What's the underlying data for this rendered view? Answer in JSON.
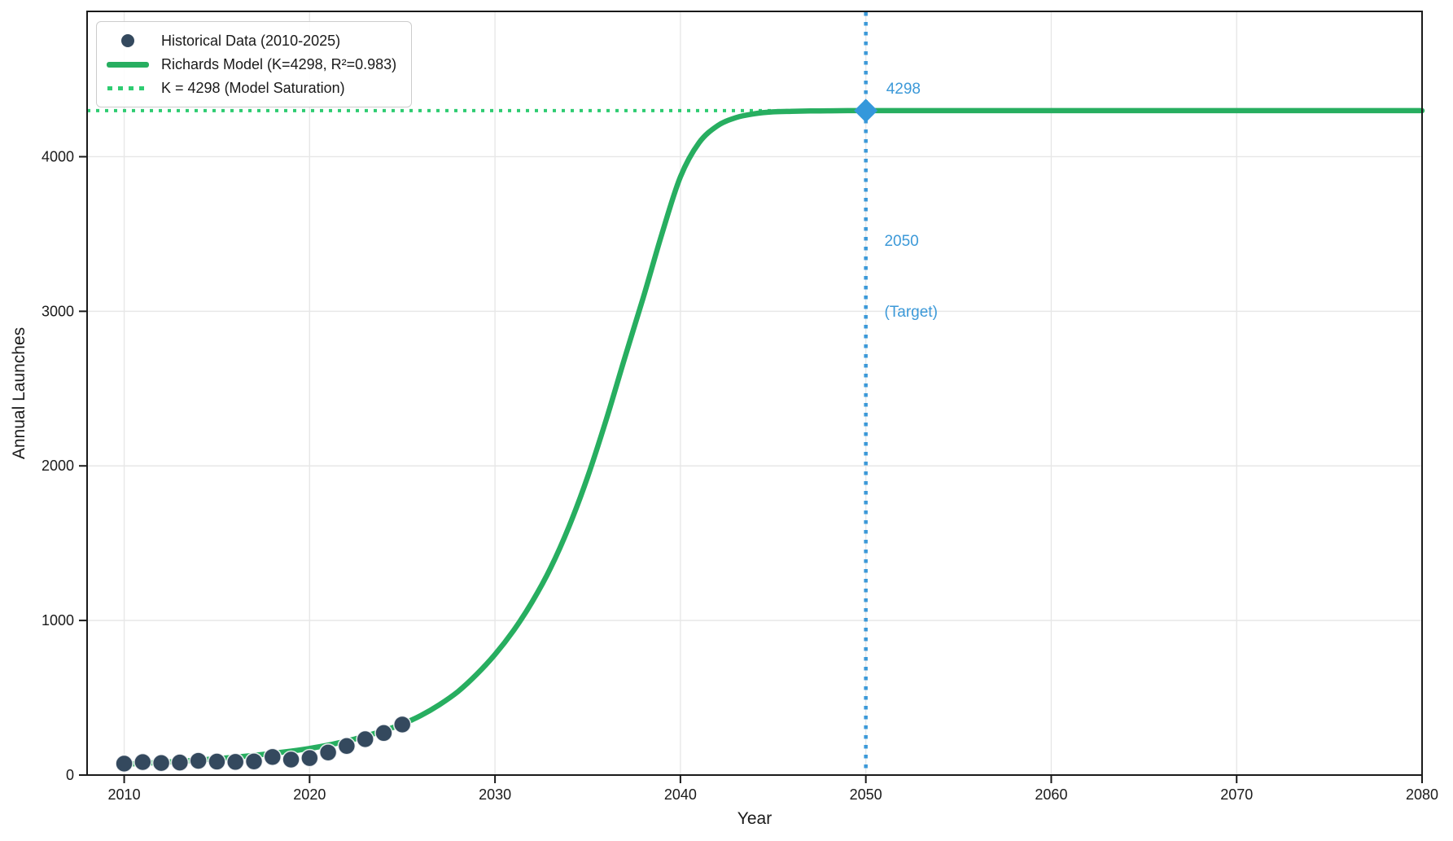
{
  "chart_data": {
    "type": "line",
    "title": "",
    "xlabel": "Year",
    "ylabel": "Annual Launches",
    "xlim": [
      2008,
      2080
    ],
    "ylim": [
      0,
      4940
    ],
    "xticks": [
      2010,
      2020,
      2030,
      2040,
      2050,
      2060,
      2070,
      2080
    ],
    "yticks": [
      0,
      1000,
      2000,
      3000,
      4000
    ],
    "grid": true,
    "legend_position": "upper-left",
    "model": {
      "name": "Richards",
      "K": 4298,
      "r_squared": 0.983
    },
    "series": [
      {
        "name": "Historical Data (2010-2025)",
        "type": "scatter",
        "color": "#34495e",
        "x": [
          2010,
          2011,
          2012,
          2013,
          2014,
          2015,
          2016,
          2017,
          2018,
          2019,
          2020,
          2021,
          2022,
          2023,
          2024,
          2025
        ],
        "y": [
          74,
          84,
          78,
          81,
          92,
          87,
          85,
          88,
          117,
          100,
          110,
          146,
          188,
          232,
          272,
          327
        ]
      },
      {
        "name": "Richards Model (K=4298, R²=0.983)",
        "type": "line",
        "color": "#27ae60",
        "x": [
          2010,
          2011,
          2012,
          2013,
          2014,
          2015,
          2016,
          2017,
          2018,
          2019,
          2020,
          2021,
          2022,
          2023,
          2024,
          2025,
          2026,
          2027,
          2028,
          2029,
          2030,
          2031,
          2032,
          2033,
          2034,
          2035,
          2036,
          2037,
          2038,
          2039,
          2040,
          2041,
          2042,
          2043,
          2044,
          2045,
          2046,
          2047,
          2048,
          2049,
          2050,
          2055,
          2060,
          2065,
          2070,
          2075,
          2080
        ],
        "y": [
          70,
          76,
          82,
          89,
          97,
          106,
          116,
          127,
          140,
          155,
          172,
          194,
          220,
          252,
          287,
          330,
          385,
          455,
          540,
          650,
          780,
          935,
          1120,
          1340,
          1610,
          1930,
          2300,
          2700,
          3090,
          3500,
          3870,
          4090,
          4200,
          4253,
          4278,
          4290,
          4294,
          4296,
          4297,
          4298,
          4298,
          4298,
          4298,
          4298,
          4298,
          4298,
          4298
        ]
      },
      {
        "name": "K = 4298 (Model Saturation)",
        "type": "hline",
        "style": "dotted",
        "color": "#2ecc71",
        "y": 4298
      }
    ],
    "target_line": {
      "type": "vline",
      "style": "dotted",
      "color": "#3c99d8",
      "x": 2050
    },
    "target_marker": {
      "shape": "diamond",
      "color": "#3498db",
      "x": 2050,
      "y": 4298
    },
    "annotations": [
      {
        "text": "4298",
        "color": "#3c99d8",
        "x": 2051.1,
        "y": 4513
      },
      {
        "lines": [
          "2050",
          "(Target)"
        ],
        "color": "#3c99d8",
        "x": 2051.0,
        "y": 3834
      }
    ],
    "colors": {
      "grid": "#e7e7e7",
      "axis": "#1a1a1a",
      "background": "#ffffff"
    }
  }
}
